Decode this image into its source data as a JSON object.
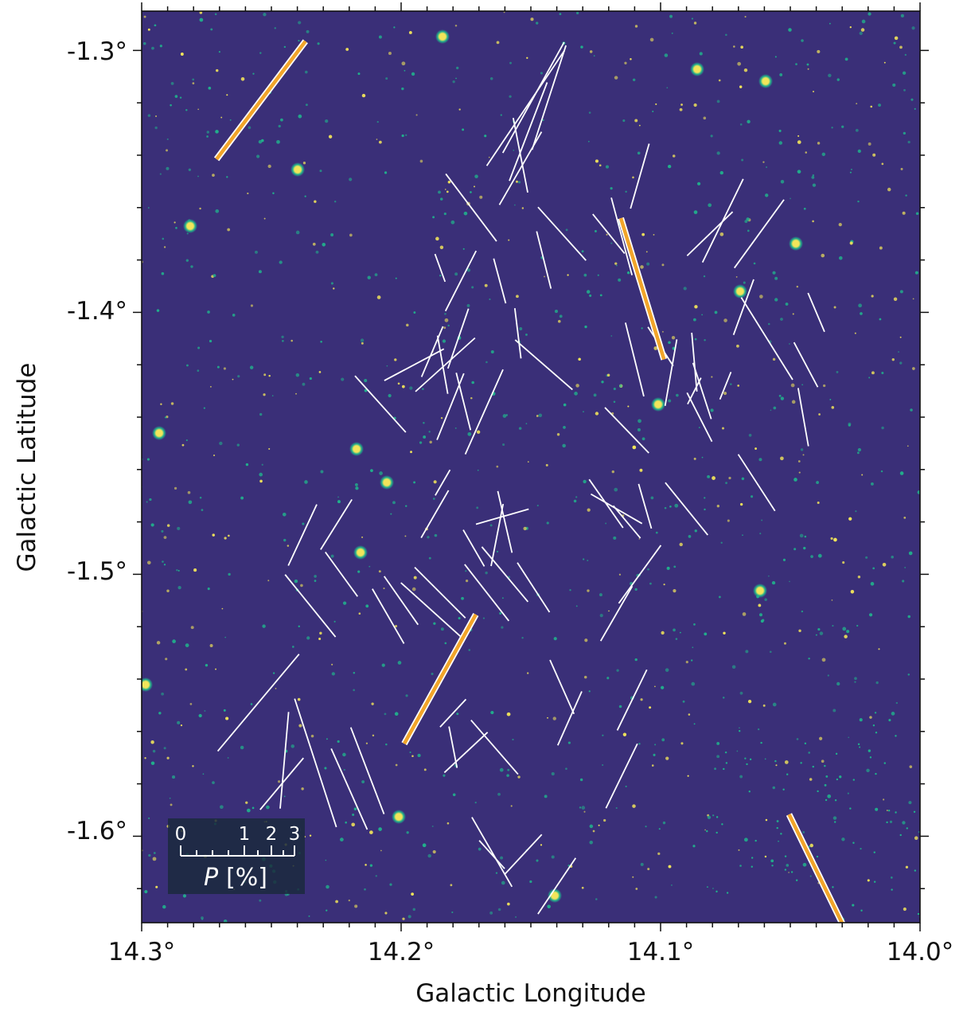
{
  "colors": {
    "background": "#3a2f78",
    "background_mid": "#3f3f88",
    "star_core": "#f2e55a",
    "star_halo": "#21b08c",
    "vector": "#ffffff",
    "reference_vector": "#f2a52a",
    "frame": "#111111"
  },
  "chart_data": {
    "type": "scatter",
    "title": "",
    "xlabel": "Galactic Longitude",
    "ylabel": "Galactic Latitude",
    "xlim": [
      14.3,
      14.0
    ],
    "ylim": [
      -1.633,
      -1.285
    ],
    "x_ticks": [
      14.3,
      14.2,
      14.1,
      14.0
    ],
    "x_tick_labels": [
      "14.3°",
      "14.2°",
      "14.1°",
      "14.0°"
    ],
    "y_ticks": [
      -1.3,
      -1.4,
      -1.5,
      -1.6
    ],
    "y_tick_labels": [
      "-1.3°",
      "-1.4°",
      "-1.5°",
      "-1.6°"
    ],
    "x_minor_step": 0.01,
    "y_minor_step": 0.02,
    "grid": false,
    "background_image": "false-color infrared star field",
    "legend": {
      "position": "bottom-left",
      "scale_labels": [
        "0",
        "1",
        "2",
        "3"
      ],
      "scale_values": [
        0,
        1,
        2,
        3
      ],
      "label_P": "P",
      "label_unit": "[%]"
    },
    "vector_encoding": "line length proportional to polarization fraction P; orientation gives polarization angle",
    "reference_vectors": [
      {
        "l": 14.254,
        "b": -1.319,
        "pa_deg": 37,
        "p": 3.5
      },
      {
        "l": 14.107,
        "b": -1.391,
        "pa_deg": -17,
        "p": 3.5
      },
      {
        "l": 14.185,
        "b": -1.54,
        "pa_deg": 29,
        "p": 3.5
      },
      {
        "l": 14.038,
        "b": -1.617,
        "pa_deg": -26,
        "p": 3.5
      }
    ],
    "vectors": [
      {
        "l": 14.152,
        "b": -1.322,
        "pa_deg": 34,
        "p": 3.3
      },
      {
        "l": 14.149,
        "b": -1.318,
        "pa_deg": 29,
        "p": 3.0
      },
      {
        "l": 14.154,
        "b": -1.345,
        "pa_deg": 30,
        "p": 2.0
      },
      {
        "l": 14.151,
        "b": -1.331,
        "pa_deg": 21,
        "p": 2.5
      },
      {
        "l": 14.154,
        "b": -1.34,
        "pa_deg": -11,
        "p": 1.8
      },
      {
        "l": 14.143,
        "b": -1.318,
        "pa_deg": 18,
        "p": 2.6
      },
      {
        "l": 14.173,
        "b": -1.36,
        "pa_deg": -37,
        "p": 2.0
      },
      {
        "l": 14.108,
        "b": -1.348,
        "pa_deg": 16,
        "p": 1.6
      },
      {
        "l": 14.115,
        "b": -1.371,
        "pa_deg": -15,
        "p": 1.9
      },
      {
        "l": 14.12,
        "b": -1.37,
        "pa_deg": -39,
        "p": 1.2
      },
      {
        "l": 14.081,
        "b": -1.37,
        "pa_deg": 46,
        "p": 1.5
      },
      {
        "l": 14.076,
        "b": -1.365,
        "pa_deg": 26,
        "p": 2.2
      },
      {
        "l": 14.062,
        "b": -1.37,
        "pa_deg": 36,
        "p": 2.0
      },
      {
        "l": 14.145,
        "b": -1.38,
        "pa_deg": -14,
        "p": 1.4
      },
      {
        "l": 14.138,
        "b": -1.37,
        "pa_deg": -42,
        "p": 1.7
      },
      {
        "l": 14.177,
        "b": -1.388,
        "pa_deg": 27,
        "p": 1.6
      },
      {
        "l": 14.185,
        "b": -1.383,
        "pa_deg": -20,
        "p": 0.7
      },
      {
        "l": 14.162,
        "b": -1.388,
        "pa_deg": -15,
        "p": 1.1
      },
      {
        "l": 14.04,
        "b": -1.4,
        "pa_deg": -23,
        "p": 1.0
      },
      {
        "l": 14.059,
        "b": -1.41,
        "pa_deg": -32,
        "p": 2.3
      },
      {
        "l": 14.068,
        "b": -1.398,
        "pa_deg": 20,
        "p": 1.4
      },
      {
        "l": 14.045,
        "b": -1.44,
        "pa_deg": -10,
        "p": 1.4
      },
      {
        "l": 14.044,
        "b": -1.42,
        "pa_deg": -28,
        "p": 1.2
      },
      {
        "l": 14.087,
        "b": -1.419,
        "pa_deg": -5,
        "p": 1.4
      },
      {
        "l": 14.1,
        "b": -1.413,
        "pa_deg": -33,
        "p": 1.1
      },
      {
        "l": 14.11,
        "b": -1.418,
        "pa_deg": -14,
        "p": 1.8
      },
      {
        "l": 14.096,
        "b": -1.423,
        "pa_deg": 10,
        "p": 1.6
      },
      {
        "l": 14.084,
        "b": -1.43,
        "pa_deg": -18,
        "p": 1.4
      },
      {
        "l": 14.075,
        "b": -1.428,
        "pa_deg": 22,
        "p": 0.7
      },
      {
        "l": 14.145,
        "b": -1.42,
        "pa_deg": -49,
        "p": 1.8
      },
      {
        "l": 14.155,
        "b": -1.408,
        "pa_deg": -7,
        "p": 1.2
      },
      {
        "l": 14.178,
        "b": -1.41,
        "pa_deg": 19,
        "p": 1.5
      },
      {
        "l": 14.188,
        "b": -1.415,
        "pa_deg": 23,
        "p": 1.3
      },
      {
        "l": 14.184,
        "b": -1.42,
        "pa_deg": -10,
        "p": 1.4
      },
      {
        "l": 14.183,
        "b": -1.42,
        "pa_deg": 48,
        "p": 1.9
      },
      {
        "l": 14.195,
        "b": -1.42,
        "pa_deg": 62,
        "p": 1.6
      },
      {
        "l": 14.208,
        "b": -1.435,
        "pa_deg": -42,
        "p": 1.8
      },
      {
        "l": 14.181,
        "b": -1.436,
        "pa_deg": 22,
        "p": 1.7
      },
      {
        "l": 14.176,
        "b": -1.434,
        "pa_deg": -14,
        "p": 1.4
      },
      {
        "l": 14.168,
        "b": -1.438,
        "pa_deg": 24,
        "p": 2.2
      },
      {
        "l": 14.113,
        "b": -1.445,
        "pa_deg": -44,
        "p": 1.5
      },
      {
        "l": 14.085,
        "b": -1.44,
        "pa_deg": -27,
        "p": 1.3
      },
      {
        "l": 14.087,
        "b": -1.43,
        "pa_deg": 27,
        "p": 0.7
      },
      {
        "l": 14.09,
        "b": -1.475,
        "pa_deg": -39,
        "p": 1.6
      },
      {
        "l": 14.063,
        "b": -1.465,
        "pa_deg": -33,
        "p": 1.6
      },
      {
        "l": 14.184,
        "b": -1.465,
        "pa_deg": 30,
        "p": 0.7
      },
      {
        "l": 14.187,
        "b": -1.477,
        "pa_deg": 30,
        "p": 1.3
      },
      {
        "l": 14.161,
        "b": -1.478,
        "pa_deg": 74,
        "p": 1.3
      },
      {
        "l": 14.16,
        "b": -1.48,
        "pa_deg": -13,
        "p": 1.5
      },
      {
        "l": 14.163,
        "b": -1.485,
        "pa_deg": 11,
        "p": 1.5
      },
      {
        "l": 14.172,
        "b": -1.49,
        "pa_deg": -30,
        "p": 1.0
      },
      {
        "l": 14.121,
        "b": -1.473,
        "pa_deg": -35,
        "p": 1.4
      },
      {
        "l": 14.117,
        "b": -1.475,
        "pa_deg": -60,
        "p": 1.4
      },
      {
        "l": 14.113,
        "b": -1.48,
        "pa_deg": -40,
        "p": 1.0
      },
      {
        "l": 14.106,
        "b": -1.474,
        "pa_deg": -16,
        "p": 1.1
      },
      {
        "l": 14.225,
        "b": -1.481,
        "pa_deg": 32,
        "p": 1.4
      },
      {
        "l": 14.238,
        "b": -1.485,
        "pa_deg": 25,
        "p": 1.6
      },
      {
        "l": 14.235,
        "b": -1.512,
        "pa_deg": -39,
        "p": 1.9
      },
      {
        "l": 14.2,
        "b": -1.51,
        "pa_deg": -35,
        "p": 1.4
      },
      {
        "l": 14.188,
        "b": -1.514,
        "pa_deg": -48,
        "p": 2.0
      },
      {
        "l": 14.185,
        "b": -1.507,
        "pa_deg": -45,
        "p": 1.7
      },
      {
        "l": 14.167,
        "b": -1.507,
        "pa_deg": -38,
        "p": 1.7
      },
      {
        "l": 14.16,
        "b": -1.5,
        "pa_deg": -40,
        "p": 1.7
      },
      {
        "l": 14.149,
        "b": -1.505,
        "pa_deg": -33,
        "p": 1.4
      },
      {
        "l": 14.223,
        "b": -1.5,
        "pa_deg": -36,
        "p": 1.3
      },
      {
        "l": 14.108,
        "b": -1.5,
        "pa_deg": 36,
        "p": 1.7
      },
      {
        "l": 14.117,
        "b": -1.515,
        "pa_deg": 30,
        "p": 1.5
      },
      {
        "l": 14.205,
        "b": -1.516,
        "pa_deg": -30,
        "p": 1.5
      },
      {
        "l": 14.255,
        "b": -1.549,
        "pa_deg": 40,
        "p": 3.0
      },
      {
        "l": 14.138,
        "b": -1.543,
        "pa_deg": -24,
        "p": 1.4
      },
      {
        "l": 14.135,
        "b": -1.555,
        "pa_deg": 24,
        "p": 1.4
      },
      {
        "l": 14.111,
        "b": -1.548,
        "pa_deg": 26,
        "p": 1.6
      },
      {
        "l": 14.18,
        "b": -1.553,
        "pa_deg": 43,
        "p": 0.9
      },
      {
        "l": 14.164,
        "b": -1.566,
        "pa_deg": -41,
        "p": 1.7
      },
      {
        "l": 14.175,
        "b": -1.568,
        "pa_deg": 47,
        "p": 1.4
      },
      {
        "l": 14.18,
        "b": -1.566,
        "pa_deg": -11,
        "p": 1.0
      },
      {
        "l": 14.233,
        "b": -1.572,
        "pa_deg": -18,
        "p": 3.2
      },
      {
        "l": 14.245,
        "b": -1.571,
        "pa_deg": 5,
        "p": 2.3
      },
      {
        "l": 14.22,
        "b": -1.582,
        "pa_deg": -24,
        "p": 2.1
      },
      {
        "l": 14.246,
        "b": -1.58,
        "pa_deg": 40,
        "p": 1.6
      },
      {
        "l": 14.213,
        "b": -1.575,
        "pa_deg": -21,
        "p": 2.2
      },
      {
        "l": 14.115,
        "b": -1.577,
        "pa_deg": 26,
        "p": 1.7
      },
      {
        "l": 14.165,
        "b": -1.606,
        "pa_deg": -30,
        "p": 1.9
      },
      {
        "l": 14.153,
        "b": -1.607,
        "pa_deg": 43,
        "p": 1.3
      },
      {
        "l": 14.165,
        "b": -1.607,
        "pa_deg": -42,
        "p": 0.9
      },
      {
        "l": 14.14,
        "b": -1.619,
        "pa_deg": 34,
        "p": 1.6
      }
    ]
  }
}
